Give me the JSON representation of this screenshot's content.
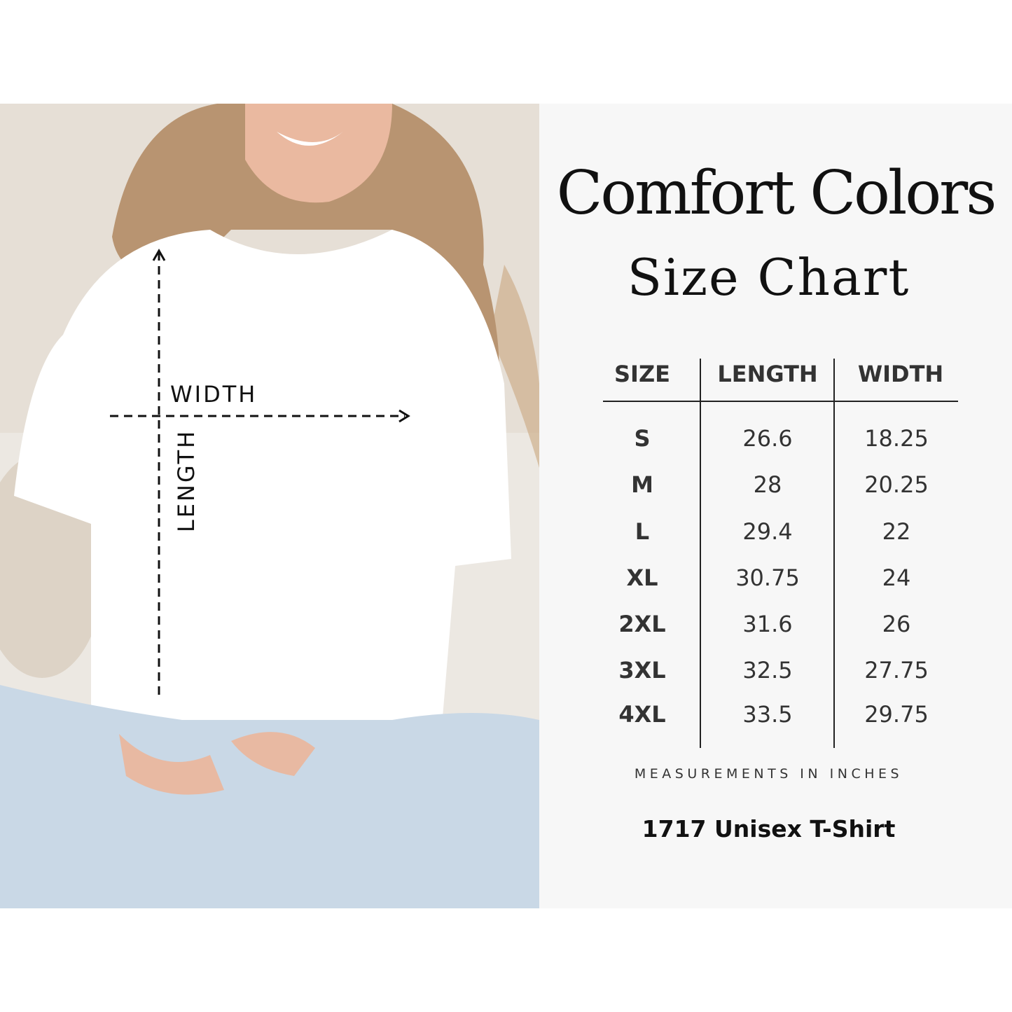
{
  "photo": {
    "annotations": {
      "width_label": "WIDTH",
      "length_label": "LENGTH"
    }
  },
  "header": {
    "brand": "Comfort Colors",
    "subtitle": "Size Chart"
  },
  "table": {
    "columns": [
      "SIZE",
      "LENGTH",
      "WIDTH"
    ],
    "rows": [
      [
        "S",
        "26.6",
        "18.25"
      ],
      [
        "M",
        "28",
        "20.25"
      ],
      [
        "L",
        "29.4",
        "22"
      ],
      [
        "XL",
        "30.75",
        "24"
      ],
      [
        "2XL",
        "31.6",
        "26"
      ],
      [
        "3XL",
        "32.5",
        "27.75"
      ],
      [
        "4XL",
        "33.5",
        "29.75"
      ]
    ]
  },
  "footer": {
    "units_note": "MEASUREMENTS IN INCHES",
    "product": "1717 Unisex T-Shirt"
  },
  "colors": {
    "panel_bg": "#f7f7f7",
    "text": "#333333",
    "shirt": "#ffffff",
    "jeans": "#c9d8e6"
  }
}
